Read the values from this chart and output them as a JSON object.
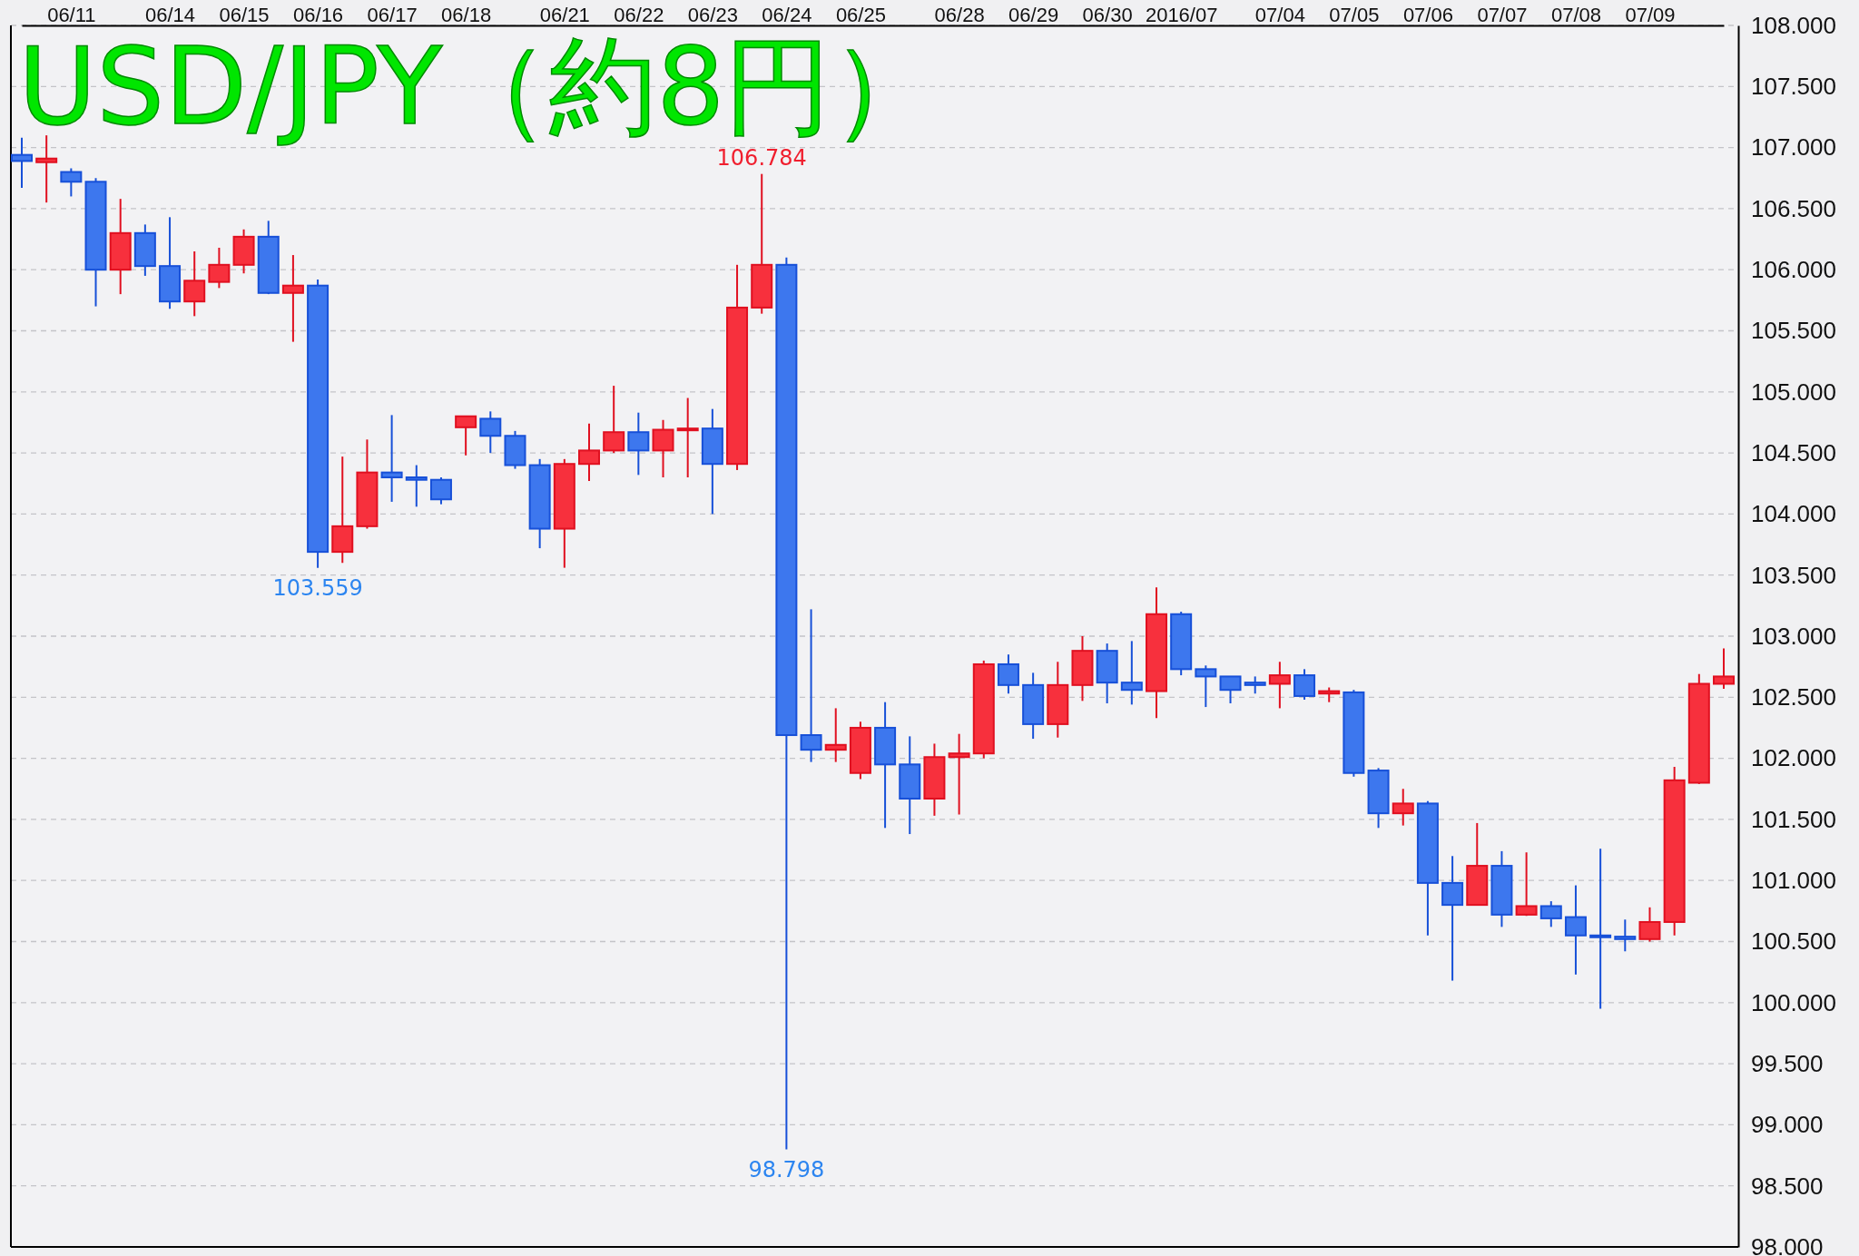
{
  "chart_data": {
    "type": "candlestick",
    "title": "USD/JPY（約8円）",
    "categories": [
      null,
      null,
      "06/11",
      null,
      null,
      null,
      "06/14",
      null,
      null,
      "06/15",
      null,
      null,
      "06/16",
      null,
      null,
      "06/17",
      null,
      null,
      "06/18",
      null,
      null,
      null,
      "06/21",
      null,
      null,
      "06/22",
      null,
      null,
      "06/23",
      null,
      null,
      "06/24",
      null,
      null,
      "06/25",
      null,
      null,
      null,
      "06/28",
      null,
      null,
      "06/29",
      null,
      null,
      "06/30",
      null,
      null,
      "2016/07",
      null,
      null,
      null,
      "07/04",
      null,
      null,
      "07/05",
      null,
      null,
      "07/06",
      null,
      null,
      "07/07",
      null,
      null,
      "07/08",
      null,
      null,
      "07/09",
      null,
      null,
      null
    ],
    "ohlc": [
      [
        106.94,
        107.08,
        106.67,
        106.89
      ],
      [
        106.88,
        107.1,
        106.55,
        106.91
      ],
      [
        106.8,
        106.83,
        106.6,
        106.72
      ],
      [
        106.72,
        106.75,
        105.7,
        106.0
      ],
      [
        106.0,
        106.58,
        105.8,
        106.3
      ],
      [
        106.3,
        106.37,
        105.95,
        106.03
      ],
      [
        106.03,
        106.43,
        105.68,
        105.74
      ],
      [
        105.74,
        106.15,
        105.62,
        105.91
      ],
      [
        105.9,
        106.18,
        105.85,
        106.04
      ],
      [
        106.04,
        106.33,
        105.97,
        106.27
      ],
      [
        106.27,
        106.4,
        105.8,
        105.81
      ],
      [
        105.81,
        106.12,
        105.41,
        105.87
      ],
      [
        105.87,
        105.92,
        103.559,
        103.69
      ],
      [
        103.69,
        104.47,
        103.6,
        103.9
      ],
      [
        103.9,
        104.61,
        103.88,
        104.34
      ],
      [
        104.34,
        104.81,
        104.1,
        104.3
      ],
      [
        104.3,
        104.4,
        104.06,
        104.28
      ],
      [
        104.28,
        104.3,
        104.08,
        104.12
      ],
      [
        104.71,
        104.8,
        104.48,
        104.8
      ],
      [
        104.78,
        104.84,
        104.5,
        104.64
      ],
      [
        104.64,
        104.68,
        104.37,
        104.4
      ],
      [
        104.4,
        104.45,
        103.72,
        103.88
      ],
      [
        103.88,
        104.45,
        103.56,
        104.41
      ],
      [
        104.41,
        104.74,
        104.27,
        104.52
      ],
      [
        104.52,
        105.05,
        104.5,
        104.67
      ],
      [
        104.67,
        104.83,
        104.32,
        104.52
      ],
      [
        104.52,
        104.77,
        104.3,
        104.69
      ],
      [
        104.69,
        104.95,
        104.3,
        104.7
      ],
      [
        104.7,
        104.86,
        104.0,
        104.41
      ],
      [
        104.41,
        106.04,
        104.36,
        105.69
      ],
      [
        105.69,
        106.784,
        105.64,
        106.04
      ],
      [
        106.04,
        106.1,
        98.798,
        102.19
      ],
      [
        102.19,
        103.22,
        101.97,
        102.07
      ],
      [
        102.07,
        102.41,
        101.97,
        102.11
      ],
      [
        101.88,
        102.3,
        101.83,
        102.25
      ],
      [
        102.25,
        102.46,
        101.43,
        101.95
      ],
      [
        101.95,
        102.18,
        101.38,
        101.67
      ],
      [
        101.67,
        102.12,
        101.53,
        102.01
      ],
      [
        102.01,
        102.2,
        101.54,
        102.04
      ],
      [
        102.04,
        102.8,
        102.0,
        102.77
      ],
      [
        102.77,
        102.85,
        102.53,
        102.6
      ],
      [
        102.6,
        102.7,
        102.16,
        102.28
      ],
      [
        102.28,
        102.79,
        102.17,
        102.6
      ],
      [
        102.6,
        103.0,
        102.47,
        102.88
      ],
      [
        102.88,
        102.94,
        102.45,
        102.62
      ],
      [
        102.62,
        102.96,
        102.44,
        102.56
      ],
      [
        102.55,
        103.4,
        102.33,
        103.18
      ],
      [
        103.18,
        103.2,
        102.68,
        102.73
      ],
      [
        102.73,
        102.76,
        102.42,
        102.67
      ],
      [
        102.67,
        102.67,
        102.45,
        102.56
      ],
      [
        102.62,
        102.67,
        102.53,
        102.6
      ],
      [
        102.61,
        102.79,
        102.41,
        102.68
      ],
      [
        102.68,
        102.73,
        102.48,
        102.51
      ],
      [
        102.53,
        102.58,
        102.46,
        102.55
      ],
      [
        102.54,
        102.56,
        101.85,
        101.88
      ],
      [
        101.9,
        101.92,
        101.43,
        101.55
      ],
      [
        101.55,
        101.75,
        101.45,
        101.63
      ],
      [
        101.63,
        101.65,
        100.55,
        100.98
      ],
      [
        100.98,
        101.2,
        100.18,
        100.8
      ],
      [
        100.8,
        101.47,
        100.8,
        101.12
      ],
      [
        101.12,
        101.24,
        100.62,
        100.72
      ],
      [
        100.72,
        101.23,
        100.71,
        100.79
      ],
      [
        100.79,
        100.83,
        100.62,
        100.69
      ],
      [
        100.7,
        100.96,
        100.23,
        100.55
      ],
      [
        100.55,
        101.26,
        99.95,
        100.54
      ],
      [
        100.54,
        100.68,
        100.42,
        100.52
      ],
      [
        100.52,
        100.78,
        100.5,
        100.66
      ],
      [
        100.66,
        101.93,
        100.55,
        101.82
      ],
      [
        101.8,
        102.69,
        101.79,
        102.61
      ],
      [
        102.61,
        102.9,
        102.57,
        102.67
      ]
    ],
    "ylim": [
      98,
      108
    ],
    "yticks": [
      {
        "value": 98,
        "label": "98.000"
      },
      {
        "value": 98.5,
        "label": "98.500"
      },
      {
        "value": 99,
        "label": "99.000"
      },
      {
        "value": 99.5,
        "label": "99.500"
      },
      {
        "value": 100,
        "label": "100.000"
      },
      {
        "value": 100.5,
        "label": "100.500"
      },
      {
        "value": 101,
        "label": "101.000"
      },
      {
        "value": 101.5,
        "label": "101.500"
      },
      {
        "value": 102,
        "label": "102.000"
      },
      {
        "value": 102.5,
        "label": "102.500"
      },
      {
        "value": 103,
        "label": "103.000"
      },
      {
        "value": 103.5,
        "label": "103.500"
      },
      {
        "value": 104,
        "label": "104.000"
      },
      {
        "value": 104.5,
        "label": "104.500"
      },
      {
        "value": 105,
        "label": "105.000"
      },
      {
        "value": 105.5,
        "label": "105.500"
      },
      {
        "value": 106,
        "label": "106.000"
      },
      {
        "value": 106.5,
        "label": "106.500"
      },
      {
        "value": 107,
        "label": "107.000"
      },
      {
        "value": 107.5,
        "label": "107.500"
      },
      {
        "value": 108,
        "label": "108.000"
      }
    ],
    "grid": "y",
    "annotations": [
      {
        "text": "106.784",
        "y": 106.784
      },
      {
        "text": "103.559",
        "x": "06/16",
        "y": 103.559
      },
      {
        "text": "98.798",
        "x": "06/24",
        "y": 98.798
      }
    ]
  }
}
